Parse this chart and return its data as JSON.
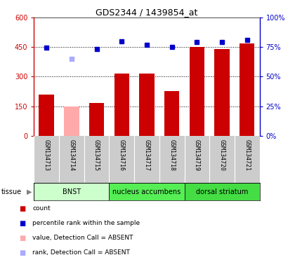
{
  "title": "GDS2344 / 1439854_at",
  "samples": [
    "GSM134713",
    "GSM134714",
    "GSM134715",
    "GSM134716",
    "GSM134717",
    "GSM134718",
    "GSM134719",
    "GSM134720",
    "GSM134721"
  ],
  "bar_values": [
    210,
    150,
    168,
    315,
    315,
    228,
    450,
    440,
    470
  ],
  "bar_colors": [
    "#cc0000",
    "#ffaaaa",
    "#cc0000",
    "#cc0000",
    "#cc0000",
    "#cc0000",
    "#cc0000",
    "#cc0000",
    "#cc0000"
  ],
  "rank_values": [
    448,
    null,
    440,
    480,
    462,
    450,
    475,
    475,
    485
  ],
  "rank_absent": [
    null,
    390,
    null,
    null,
    null,
    null,
    null,
    null,
    null
  ],
  "rank_color_normal": "#0000cc",
  "rank_color_absent": "#aaaaff",
  "ylim_left": [
    0,
    600
  ],
  "ylim_right": [
    0,
    100
  ],
  "yticks_left": [
    0,
    150,
    300,
    450,
    600
  ],
  "yticks_right": [
    0,
    25,
    50,
    75,
    100
  ],
  "ytick_labels_left": [
    "0",
    "150",
    "300",
    "450",
    "600"
  ],
  "ytick_labels_right": [
    "0%",
    "25%",
    "50%",
    "75%",
    "100%"
  ],
  "tissue_groups": [
    {
      "label": "BNST",
      "start": 0,
      "end": 2,
      "color": "#ccffcc"
    },
    {
      "label": "nucleus accumbens",
      "start": 3,
      "end": 5,
      "color": "#55ee55"
    },
    {
      "label": "dorsal striatum",
      "start": 6,
      "end": 8,
      "color": "#44dd44"
    }
  ],
  "legend_items": [
    {
      "color": "#cc0000",
      "label": "count"
    },
    {
      "color": "#0000cc",
      "label": "percentile rank within the sample"
    },
    {
      "color": "#ffaaaa",
      "label": "value, Detection Call = ABSENT"
    },
    {
      "color": "#aaaaff",
      "label": "rank, Detection Call = ABSENT"
    }
  ],
  "tick_area_color": "#cccccc",
  "spine_color_left": "#cc0000",
  "spine_color_right": "#0000cc"
}
